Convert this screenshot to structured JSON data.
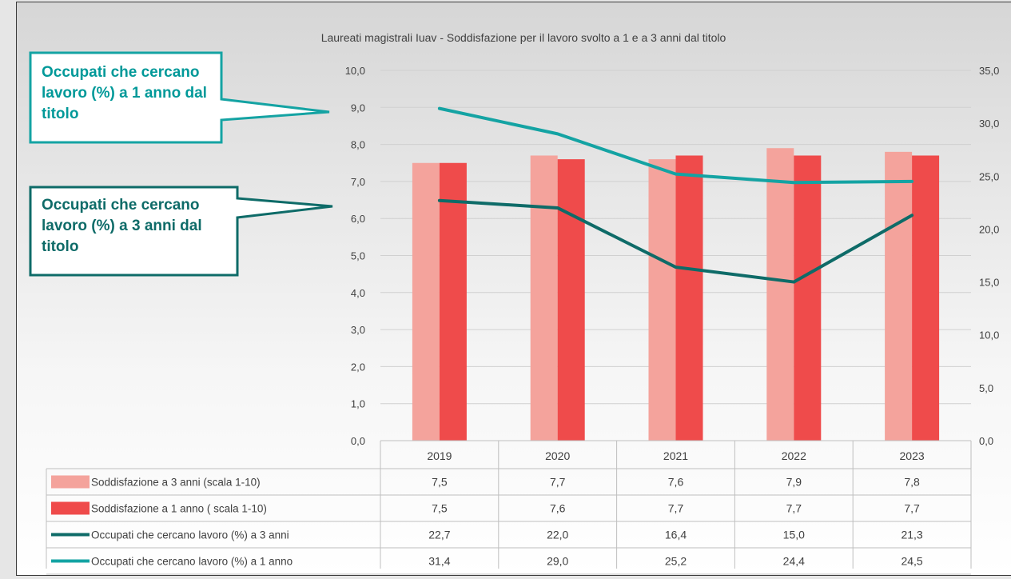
{
  "chart_data": {
    "type": "bar",
    "title": "Laureati magistrali Iuav - Soddisfazione per il lavoro svolto a 1 e a 3 anni dal titolo",
    "categories": [
      "2019",
      "2020",
      "2021",
      "2022",
      "2023"
    ],
    "y_left": {
      "range": [
        0,
        10
      ],
      "ticks": [
        "0,0",
        "1,0",
        "2,0",
        "3,0",
        "4,0",
        "5,0",
        "6,0",
        "7,0",
        "8,0",
        "9,0",
        "10,0"
      ]
    },
    "y_right": {
      "range": [
        0,
        35
      ],
      "ticks": [
        "0,0",
        "5,0",
        "10,0",
        "15,0",
        "20,0",
        "25,0",
        "30,0",
        "35,0"
      ]
    },
    "series": [
      {
        "name": "Soddisfazione a 3 anni (scala 1-10)",
        "kind": "bar",
        "axis": "left",
        "color": "#f4a39c",
        "values": [
          7.5,
          7.7,
          7.6,
          7.9,
          7.8
        ],
        "labels": [
          "7,5",
          "7,7",
          "7,6",
          "7,9",
          "7,8"
        ]
      },
      {
        "name": "Soddisfazione a 1 anno ( scala 1-10)",
        "kind": "bar",
        "axis": "left",
        "color": "#ef4b4b",
        "values": [
          7.5,
          7.6,
          7.7,
          7.7,
          7.7
        ],
        "labels": [
          "7,5",
          "7,6",
          "7,7",
          "7,7",
          "7,7"
        ]
      },
      {
        "name": "Occupati che cercano lavoro (%) a 3 anni",
        "kind": "line",
        "axis": "right",
        "color": "#0e6b68",
        "values": [
          22.7,
          22.0,
          16.4,
          15.0,
          21.3
        ],
        "labels": [
          "22,7",
          "22,0",
          "16,4",
          "15,0",
          "21,3"
        ]
      },
      {
        "name": "Occupati che cercano lavoro (%) a 1 anno",
        "kind": "line",
        "axis": "right",
        "color": "#14a3a3",
        "values": [
          31.4,
          29.0,
          25.2,
          24.4,
          24.5
        ],
        "labels": [
          "31,4",
          "29,0",
          "25,2",
          "24,4",
          "24,5"
        ]
      }
    ],
    "grid": true,
    "legend": "data-table"
  },
  "callouts": {
    "one_year": "Occupati che cercano lavoro (%) a 1 anno dal titolo",
    "three_years": "Occupati che cercano lavoro (%) a 3 anni dal titolo"
  }
}
